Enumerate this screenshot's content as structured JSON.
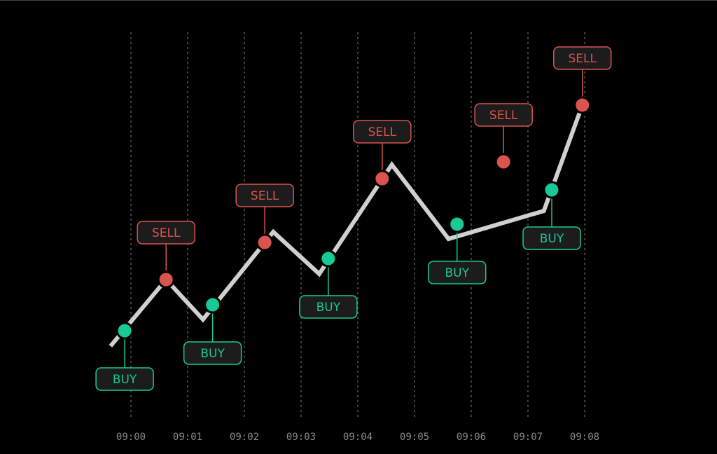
{
  "chart_data": {
    "type": "line",
    "title": "",
    "xlabel": "",
    "ylabel": "",
    "grid": "vertical dotted",
    "x_unit": "minutes after 09:00",
    "xlim": [
      -0.6,
      8.4
    ],
    "ylim": [
      0,
      100
    ],
    "x_ticks": [
      0,
      1,
      2,
      3,
      4,
      5,
      6,
      7,
      8
    ],
    "x_tick_labels": [
      "09:00",
      "09:01",
      "09:02",
      "09:03",
      "09:04",
      "09:05",
      "09:06",
      "09:07",
      "09:08"
    ],
    "series": [
      {
        "x": [
          -0.36,
          0.62,
          1.27,
          2.51,
          3.32,
          4.6,
          5.6,
          7.28,
          7.91
        ],
        "y": [
          21.4,
          40.4,
          29.0,
          54.0,
          42.0,
          73.2,
          52.0,
          60.0,
          88.0
        ]
      }
    ],
    "signals": [
      {
        "type": "BUY",
        "label": "BUY",
        "x": -0.11,
        "y": 25.8
      },
      {
        "type": "SELL",
        "label": "SELL",
        "x": 0.62,
        "y": 40.4
      },
      {
        "type": "BUY",
        "label": "BUY",
        "x": 1.44,
        "y": 33.2
      },
      {
        "type": "SELL",
        "label": "SELL",
        "x": 2.36,
        "y": 51.0
      },
      {
        "type": "BUY",
        "label": "BUY",
        "x": 3.48,
        "y": 46.4
      },
      {
        "type": "SELL",
        "label": "SELL",
        "x": 4.43,
        "y": 69.2
      },
      {
        "type": "BUY",
        "label": "BUY",
        "x": 5.75,
        "y": 56.2
      },
      {
        "type": "SELL",
        "label": "SELL",
        "x": 6.57,
        "y": 74.0
      },
      {
        "type": "BUY",
        "label": "BUY",
        "x": 7.42,
        "y": 66.0
      },
      {
        "type": "SELL",
        "label": "SELL",
        "x": 7.96,
        "y": 90.2
      }
    ],
    "colors": {
      "line": "#d0d0d0",
      "buy": "#17c995",
      "sell": "#d9534f",
      "grid": "#6a6a6a",
      "label_bg": "#1c1c1c",
      "background": "#000000"
    }
  }
}
